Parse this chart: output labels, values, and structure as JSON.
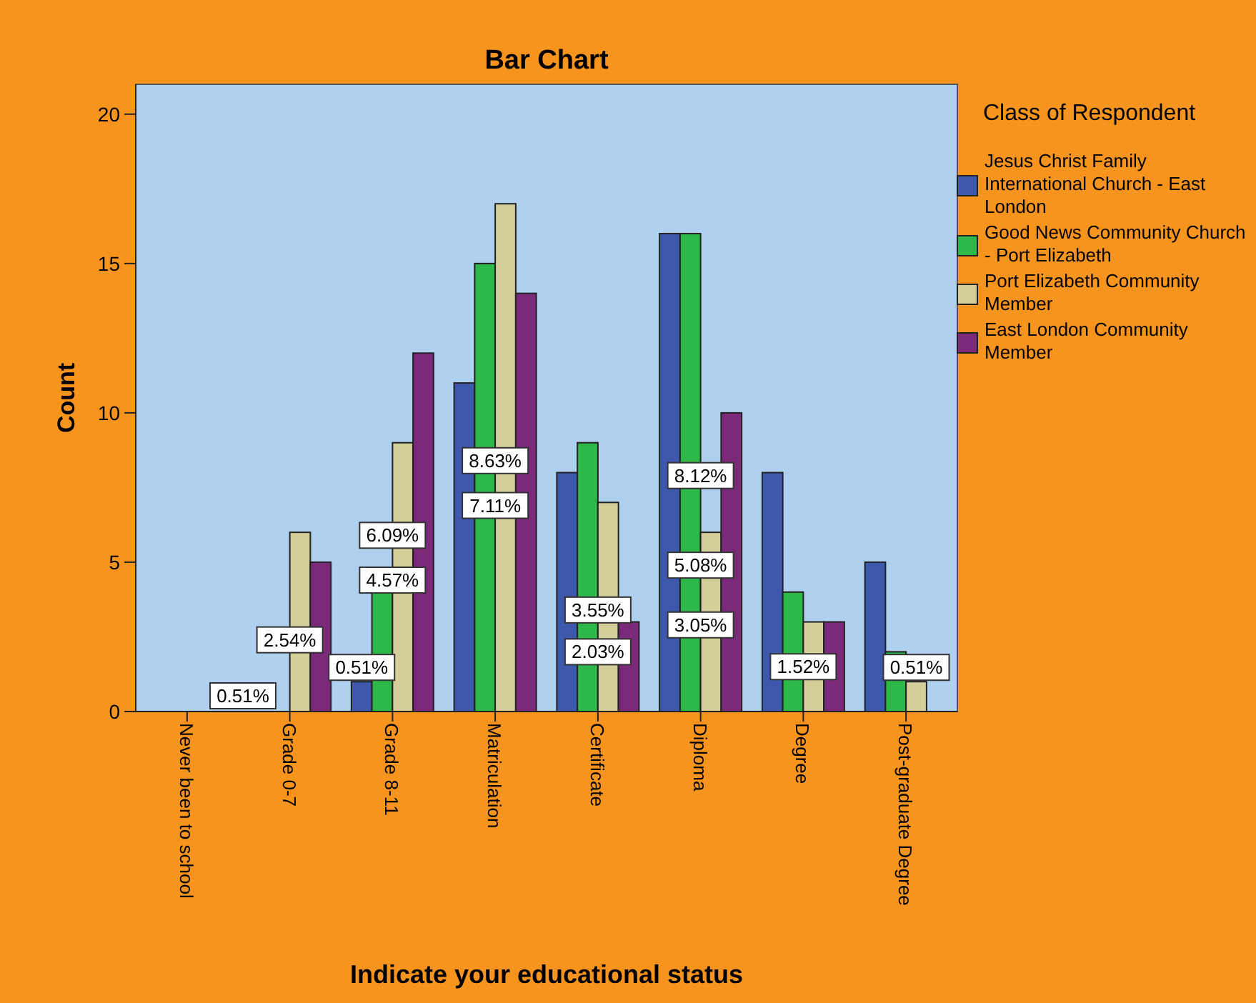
{
  "chart_data": {
    "type": "bar",
    "title": "Bar Chart",
    "xlabel": "Indicate your educational status",
    "ylabel": "Count",
    "legend_title": "Class of Respondent",
    "legend": "right",
    "categories": [
      "Never been to school",
      "Grade 0-7",
      "Grade 8-11",
      "Matriculation",
      "Certificate",
      "Diploma",
      "Degree",
      "Post-graduate Degree"
    ],
    "series": [
      {
        "name": "Jesus Christ Family International Church - East London",
        "color": "#3e58ac",
        "values": [
          0,
          0,
          1,
          11,
          8,
          16,
          8,
          5
        ]
      },
      {
        "name": "Good News Community Church - Port Elizabeth",
        "color": "#2eb84a",
        "values": [
          0,
          0,
          4,
          15,
          9,
          16,
          4,
          2
        ]
      },
      {
        "name": "Port Elizabeth Community Member",
        "color": "#d4cf98",
        "values": [
          0,
          6,
          9,
          17,
          7,
          6,
          3,
          1
        ]
      },
      {
        "name": "East London Community Member",
        "color": "#7b2a7a",
        "values": [
          null,
          5,
          12,
          14,
          3,
          10,
          3,
          0
        ]
      }
    ],
    "ylim": [
      0,
      21
    ],
    "yticks": [
      0,
      5,
      10,
      15,
      20
    ],
    "grid": false,
    "annotations": [
      "0.51%",
      {
        "text": "2.54%",
        "x": "Grade 0-7",
        "y": 2.4
      },
      {
        "text": "0.51%",
        "x": "Grade 8-11",
        "y": 1
      },
      {
        "text": "4.57%",
        "x": "Grade 8-11",
        "y": 4.4
      },
      {
        "text": "6.09%",
        "x": "Grade 8-11",
        "y": 5.9
      },
      {
        "text": "8.63%",
        "x": "Matriculation",
        "y": 8.4
      },
      {
        "text": "7.11%",
        "x": "Matriculation",
        "y": 6.9
      },
      {
        "text": "3.55%",
        "x": "Certificate",
        "y": 3.4
      },
      {
        "text": "2.03%",
        "x": "Certificate",
        "y": 2.0
      },
      {
        "text": "8.12%",
        "x": "Diploma",
        "y": 7.9
      },
      {
        "text": "5.08%",
        "x": "Diploma",
        "y": 4.9
      },
      {
        "text": "3.05%",
        "x": "Diploma",
        "y": 2.9
      },
      {
        "text": "1.52%",
        "x": "Degree",
        "y": 1.5
      },
      {
        "text": "0.51%",
        "x": "Post-graduate Degree",
        "y": 1
      }
    ]
  }
}
